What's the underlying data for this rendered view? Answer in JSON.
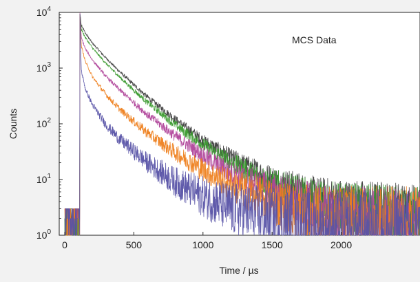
{
  "chart_data": {
    "type": "line",
    "title": "",
    "annotation": "MCS Data",
    "xlabel": "Time / µs",
    "ylabel": "Counts",
    "xlim": [
      -40,
      2570
    ],
    "ylim": [
      1,
      10000
    ],
    "y_scale": "log",
    "x_ticks": [
      "0",
      "500",
      "1000",
      "1500",
      "2000"
    ],
    "x_tick_values": [
      0,
      500,
      1000,
      1500,
      2000
    ],
    "y_ticks": [
      {
        "value": 1,
        "base": "10",
        "exp": "0"
      },
      {
        "value": 10,
        "base": "10",
        "exp": "1"
      },
      {
        "value": 100,
        "base": "10",
        "exp": "2"
      },
      {
        "value": 1000,
        "base": "10",
        "exp": "3"
      },
      {
        "value": 10000,
        "base": "10",
        "exp": "4"
      }
    ],
    "grid": false,
    "legend": "none",
    "x": [
      0,
      100,
      110,
      120,
      150,
      200,
      300,
      400,
      500,
      600,
      800,
      1000,
      1200,
      1500,
      1800,
      2000,
      2500
    ],
    "series": [
      {
        "color": "#3f3f3f",
        "values": [
          2,
          2,
          9500,
          6000,
          4200,
          2800,
          1500,
          850,
          500,
          300,
          120,
          50,
          25,
          10,
          5,
          4,
          3
        ]
      },
      {
        "color": "#3a9a2e",
        "values": [
          2,
          2,
          9500,
          5000,
          3500,
          2300,
          1200,
          680,
          400,
          240,
          95,
          42,
          20,
          8,
          4,
          3,
          2
        ]
      },
      {
        "color": "#b0449a",
        "values": [
          2,
          2,
          9500,
          3500,
          2200,
          1400,
          700,
          400,
          240,
          145,
          60,
          27,
          13,
          6,
          3,
          2,
          2
        ]
      },
      {
        "color": "#ee7f1e",
        "values": [
          2,
          2,
          9500,
          2500,
          1300,
          700,
          330,
          180,
          110,
          68,
          30,
          15,
          8,
          4,
          2,
          2,
          2
        ]
      },
      {
        "color": "#5752a6",
        "values": [
          2,
          2,
          9500,
          900,
          420,
          220,
          95,
          52,
          32,
          20,
          9,
          5,
          3,
          2,
          1,
          1,
          1
        ]
      }
    ]
  }
}
